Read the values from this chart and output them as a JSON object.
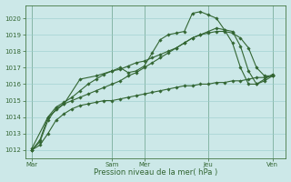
{
  "title": "",
  "xlabel": "Pression niveau de la mer( hPa )",
  "ylabel": "",
  "background_color": "#cce8e8",
  "grid_color": "#99cccc",
  "line_color": "#336633",
  "ylim": [
    1011.5,
    1020.8
  ],
  "yticks": [
    1012,
    1013,
    1014,
    1015,
    1016,
    1017,
    1018,
    1019,
    1020
  ],
  "xtick_labels": [
    "Mar",
    "Sam",
    "Mer",
    "Jeu",
    "Ven"
  ],
  "xtick_positions": [
    0,
    60,
    84,
    132,
    180
  ],
  "xlim": [
    -5,
    190
  ],
  "series": [
    {
      "x": [
        0,
        6,
        12,
        18,
        24,
        30,
        36,
        42,
        48,
        54,
        60,
        66,
        72,
        78,
        84,
        90,
        96,
        102,
        108,
        114,
        120,
        126,
        132,
        138,
        144,
        150,
        156,
        162,
        168,
        174,
        180
      ],
      "y": [
        1012.0,
        1012.3,
        1013.0,
        1013.8,
        1014.2,
        1014.5,
        1014.7,
        1014.8,
        1014.9,
        1015.0,
        1015.0,
        1015.1,
        1015.2,
        1015.3,
        1015.4,
        1015.5,
        1015.6,
        1015.7,
        1015.8,
        1015.9,
        1015.9,
        1016.0,
        1016.0,
        1016.1,
        1016.1,
        1016.2,
        1016.2,
        1016.3,
        1016.4,
        1016.4,
        1016.5
      ]
    },
    {
      "x": [
        0,
        6,
        12,
        18,
        24,
        30,
        36,
        42,
        48,
        54,
        60,
        66,
        72,
        78,
        84,
        90,
        96,
        102,
        108,
        114,
        120,
        126,
        132,
        138,
        144,
        150,
        156,
        162,
        168,
        174,
        180
      ],
      "y": [
        1012.0,
        1012.5,
        1013.8,
        1014.5,
        1014.8,
        1015.0,
        1015.2,
        1015.4,
        1015.6,
        1015.8,
        1016.0,
        1016.2,
        1016.5,
        1016.7,
        1017.0,
        1017.3,
        1017.6,
        1017.9,
        1018.2,
        1018.5,
        1018.8,
        1019.0,
        1019.1,
        1019.2,
        1019.2,
        1019.1,
        1018.8,
        1018.2,
        1017.0,
        1016.5,
        1016.5
      ]
    },
    {
      "x": [
        0,
        6,
        12,
        18,
        24,
        30,
        36,
        42,
        48,
        54,
        60,
        66,
        72,
        78,
        84,
        90,
        96,
        102,
        108,
        114,
        120,
        126,
        132,
        138,
        144,
        150,
        156,
        162,
        168,
        174,
        180
      ],
      "y": [
        1012.0,
        1012.6,
        1014.0,
        1014.6,
        1014.9,
        1015.2,
        1015.6,
        1016.0,
        1016.3,
        1016.6,
        1016.8,
        1016.9,
        1017.1,
        1017.3,
        1017.4,
        1017.6,
        1017.8,
        1018.0,
        1018.2,
        1018.5,
        1018.8,
        1019.0,
        1019.2,
        1019.4,
        1019.3,
        1019.2,
        1018.3,
        1016.8,
        1016.0,
        1016.2,
        1016.5
      ]
    },
    {
      "x": [
        0,
        12,
        24,
        36,
        48,
        60,
        66,
        72,
        78,
        84,
        90,
        96,
        102,
        108,
        114,
        120,
        126,
        132,
        138,
        144,
        150,
        156,
        162,
        168,
        174,
        180
      ],
      "y": [
        1012.1,
        1014.0,
        1014.8,
        1016.3,
        1016.5,
        1016.8,
        1017.0,
        1016.7,
        1016.8,
        1017.1,
        1017.9,
        1018.7,
        1019.0,
        1019.1,
        1019.2,
        1020.3,
        1020.4,
        1020.2,
        1020.0,
        1019.3,
        1018.5,
        1017.0,
        1016.0,
        1016.0,
        1016.3,
        1016.6
      ]
    }
  ]
}
